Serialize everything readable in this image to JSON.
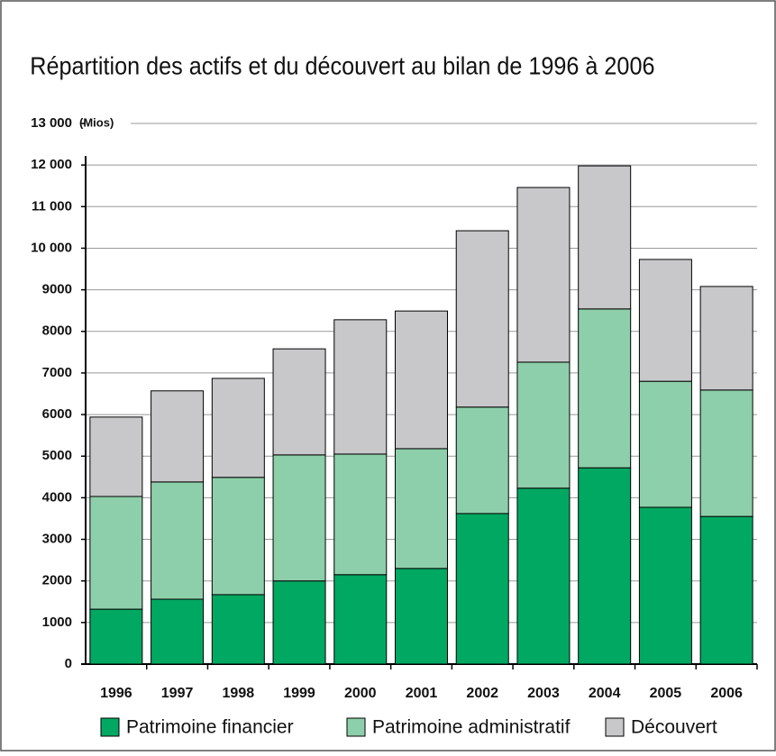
{
  "chart_data": {
    "type": "stacked_bar",
    "title": "Répartition des actifs et du découvert au bilan de 1996 à 2006",
    "annotation": "(Mios)",
    "categories": [
      "1996",
      "1997",
      "1998",
      "1999",
      "2000",
      "2001",
      "2002",
      "2003",
      "2004",
      "2005",
      "2006"
    ],
    "series": [
      {
        "name": "Patrimoine financier",
        "color": "#00a862",
        "values": [
          1320,
          1560,
          1670,
          2000,
          2150,
          2300,
          3620,
          4230,
          4720,
          3770,
          3550
        ]
      },
      {
        "name": "Patrimoine administratif",
        "color": "#8dcfaa",
        "values": [
          2710,
          2820,
          2820,
          3030,
          2900,
          2880,
          2560,
          3030,
          3820,
          3030,
          3040
        ]
      },
      {
        "name": "Découvert",
        "color": "#c8c8ca",
        "values": [
          1910,
          2190,
          2380,
          2550,
          3230,
          3310,
          4240,
          4200,
          3440,
          2930,
          2490
        ]
      }
    ],
    "ylim": [
      0,
      13000
    ],
    "yticks": [
      0,
      1000,
      2000,
      3000,
      4000,
      5000,
      6000,
      7000,
      8000,
      9000,
      {
        "value": 10000,
        "label": "10 000"
      },
      {
        "value": 11000,
        "label": "11 000"
      },
      {
        "value": 12000,
        "label": "12 000"
      },
      {
        "value": 13000,
        "label": "13 000"
      }
    ],
    "grid": true
  }
}
